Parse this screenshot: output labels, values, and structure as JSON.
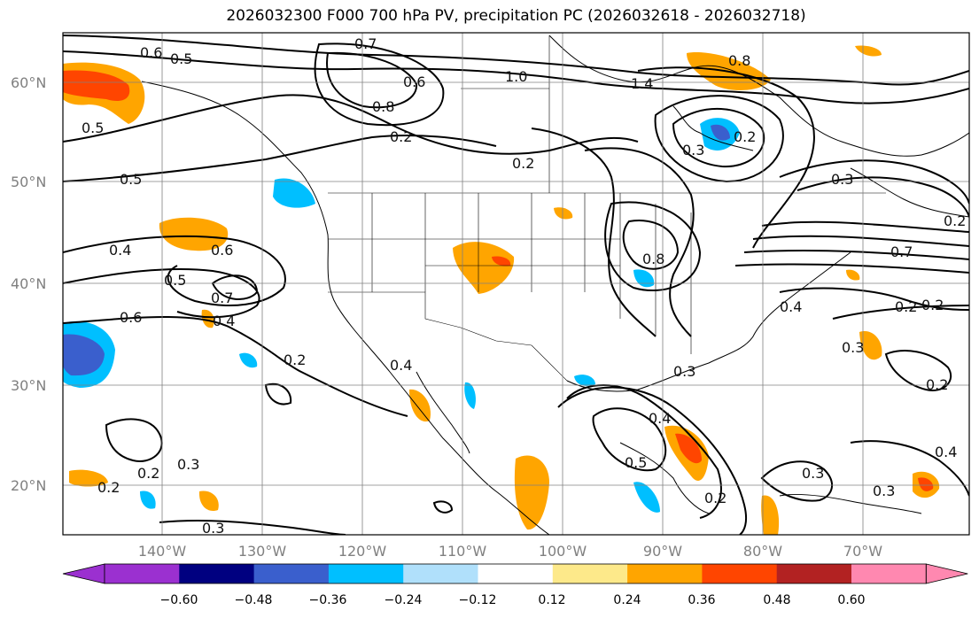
{
  "title": "2026032300 F000 700 hPa PV, precipitation PC (2026032618 - 2026032718)",
  "lat_labels": [
    "60°N",
    "50°N",
    "40°N",
    "30°N",
    "20°N"
  ],
  "lon_labels": [
    "140°W",
    "130°W",
    "120°W",
    "110°W",
    "100°W",
    "90°W",
    "80°W",
    "70°W"
  ],
  "contour_labels": [
    "0.6",
    "0.5",
    "0.5",
    "0.5",
    "0.4",
    "0.5",
    "0.6",
    "0.7",
    "0.4",
    "0.6",
    "0.2",
    "0.2",
    "0.3",
    "0.3",
    "0.2",
    "0.7",
    "0.6",
    "0.8",
    "0.2",
    "1.0",
    "0.2",
    "1.4",
    "0.8",
    "0.2",
    "0.3",
    "0.4",
    "0.8",
    "0.3",
    "0.5",
    "0.4",
    "0.2",
    "0.4",
    "0.3",
    "0.2",
    "0.7",
    "0.3",
    "0.2",
    "0.2",
    "0.3",
    "0.4",
    "0.3",
    "0.2"
  ],
  "colorbar": {
    "ticks": [
      "−0.60",
      "−0.48",
      "−0.36",
      "−0.24",
      "−0.12",
      "0.12",
      "0.24",
      "0.36",
      "0.48",
      "0.60"
    ],
    "colors": [
      "#9b30d0",
      "#000080",
      "#3a5fcd",
      "#00bfff",
      "#b0e0fb",
      "#ffffff",
      "#fde98a",
      "#ffa500",
      "#ff4500",
      "#b22222",
      "#ff88b0"
    ]
  }
}
